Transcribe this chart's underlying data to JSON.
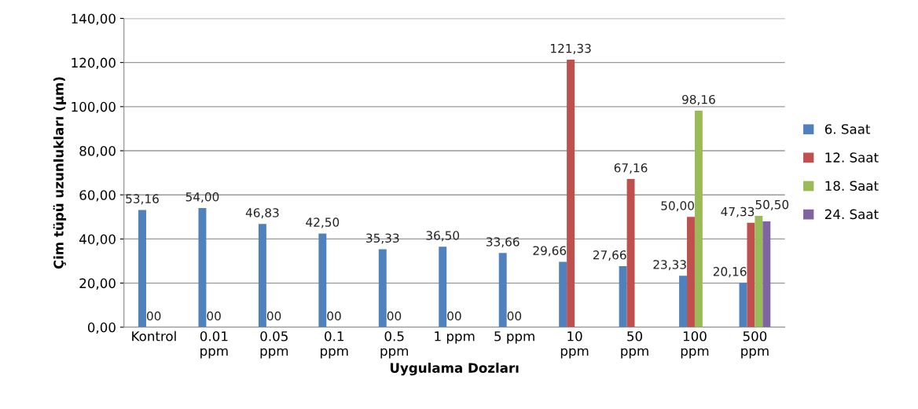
{
  "chart_data": {
    "type": "bar",
    "xlabel": "Uygulama Dozları",
    "ylabel": "Çim tüpü uzunlukları (µm)",
    "categories": [
      "Kontrol",
      "0.01\nppm",
      "0.05\nppm",
      "0.1\nppm",
      "0.5\nppm",
      "1 ppm",
      "5 ppm",
      "10\nppm",
      "50\nppm",
      "100\nppm",
      "500\nppm"
    ],
    "series": [
      {
        "name": "6. Saat",
        "color": "#4f81bd",
        "values": [
          53.16,
          54.0,
          46.83,
          42.5,
          35.33,
          36.5,
          33.66,
          29.66,
          27.66,
          23.33,
          20.16
        ],
        "value_labels": [
          "53,16",
          "54,00",
          "46,83",
          "42,50",
          "35,33",
          "36,50",
          "33,66",
          "29,66",
          "27,66",
          "23,33",
          "20,16"
        ]
      },
      {
        "name": "12. Saat",
        "color": "#c0504d",
        "values": [
          0,
          0,
          0,
          0,
          0,
          0,
          0,
          121.33,
          67.16,
          50.0,
          47.33
        ],
        "value_labels": [
          "00",
          "00",
          "00",
          "00",
          "00",
          "00",
          "00",
          "121,33",
          "67,16",
          "50,00",
          "47,33"
        ]
      },
      {
        "name": "18. Saat",
        "color": "#9bbb59",
        "values": [
          null,
          null,
          null,
          null,
          null,
          null,
          null,
          null,
          null,
          98.16,
          50.5
        ],
        "value_labels": [
          null,
          null,
          null,
          null,
          null,
          null,
          null,
          null,
          null,
          "98,16",
          "50,50"
        ]
      },
      {
        "name": "24. Saat",
        "color": "#8064a2",
        "values": [
          null,
          null,
          null,
          null,
          null,
          null,
          null,
          null,
          null,
          null,
          48.0
        ],
        "value_labels": [
          null,
          null,
          null,
          null,
          null,
          null,
          null,
          null,
          null,
          null,
          null
        ]
      }
    ],
    "ylim": [
      0,
      140
    ],
    "yticks": [
      {
        "value": 0,
        "label": "0,00"
      },
      {
        "value": 20,
        "label": "20,00"
      },
      {
        "value": 40,
        "label": "40,00"
      },
      {
        "value": 60,
        "label": "60,00"
      },
      {
        "value": 80,
        "label": "80,00"
      },
      {
        "value": 100,
        "label": "100,00"
      },
      {
        "value": 120,
        "label": "120,00"
      },
      {
        "value": 140,
        "label": "140,00"
      }
    ],
    "grid": "y",
    "legend": "right"
  }
}
